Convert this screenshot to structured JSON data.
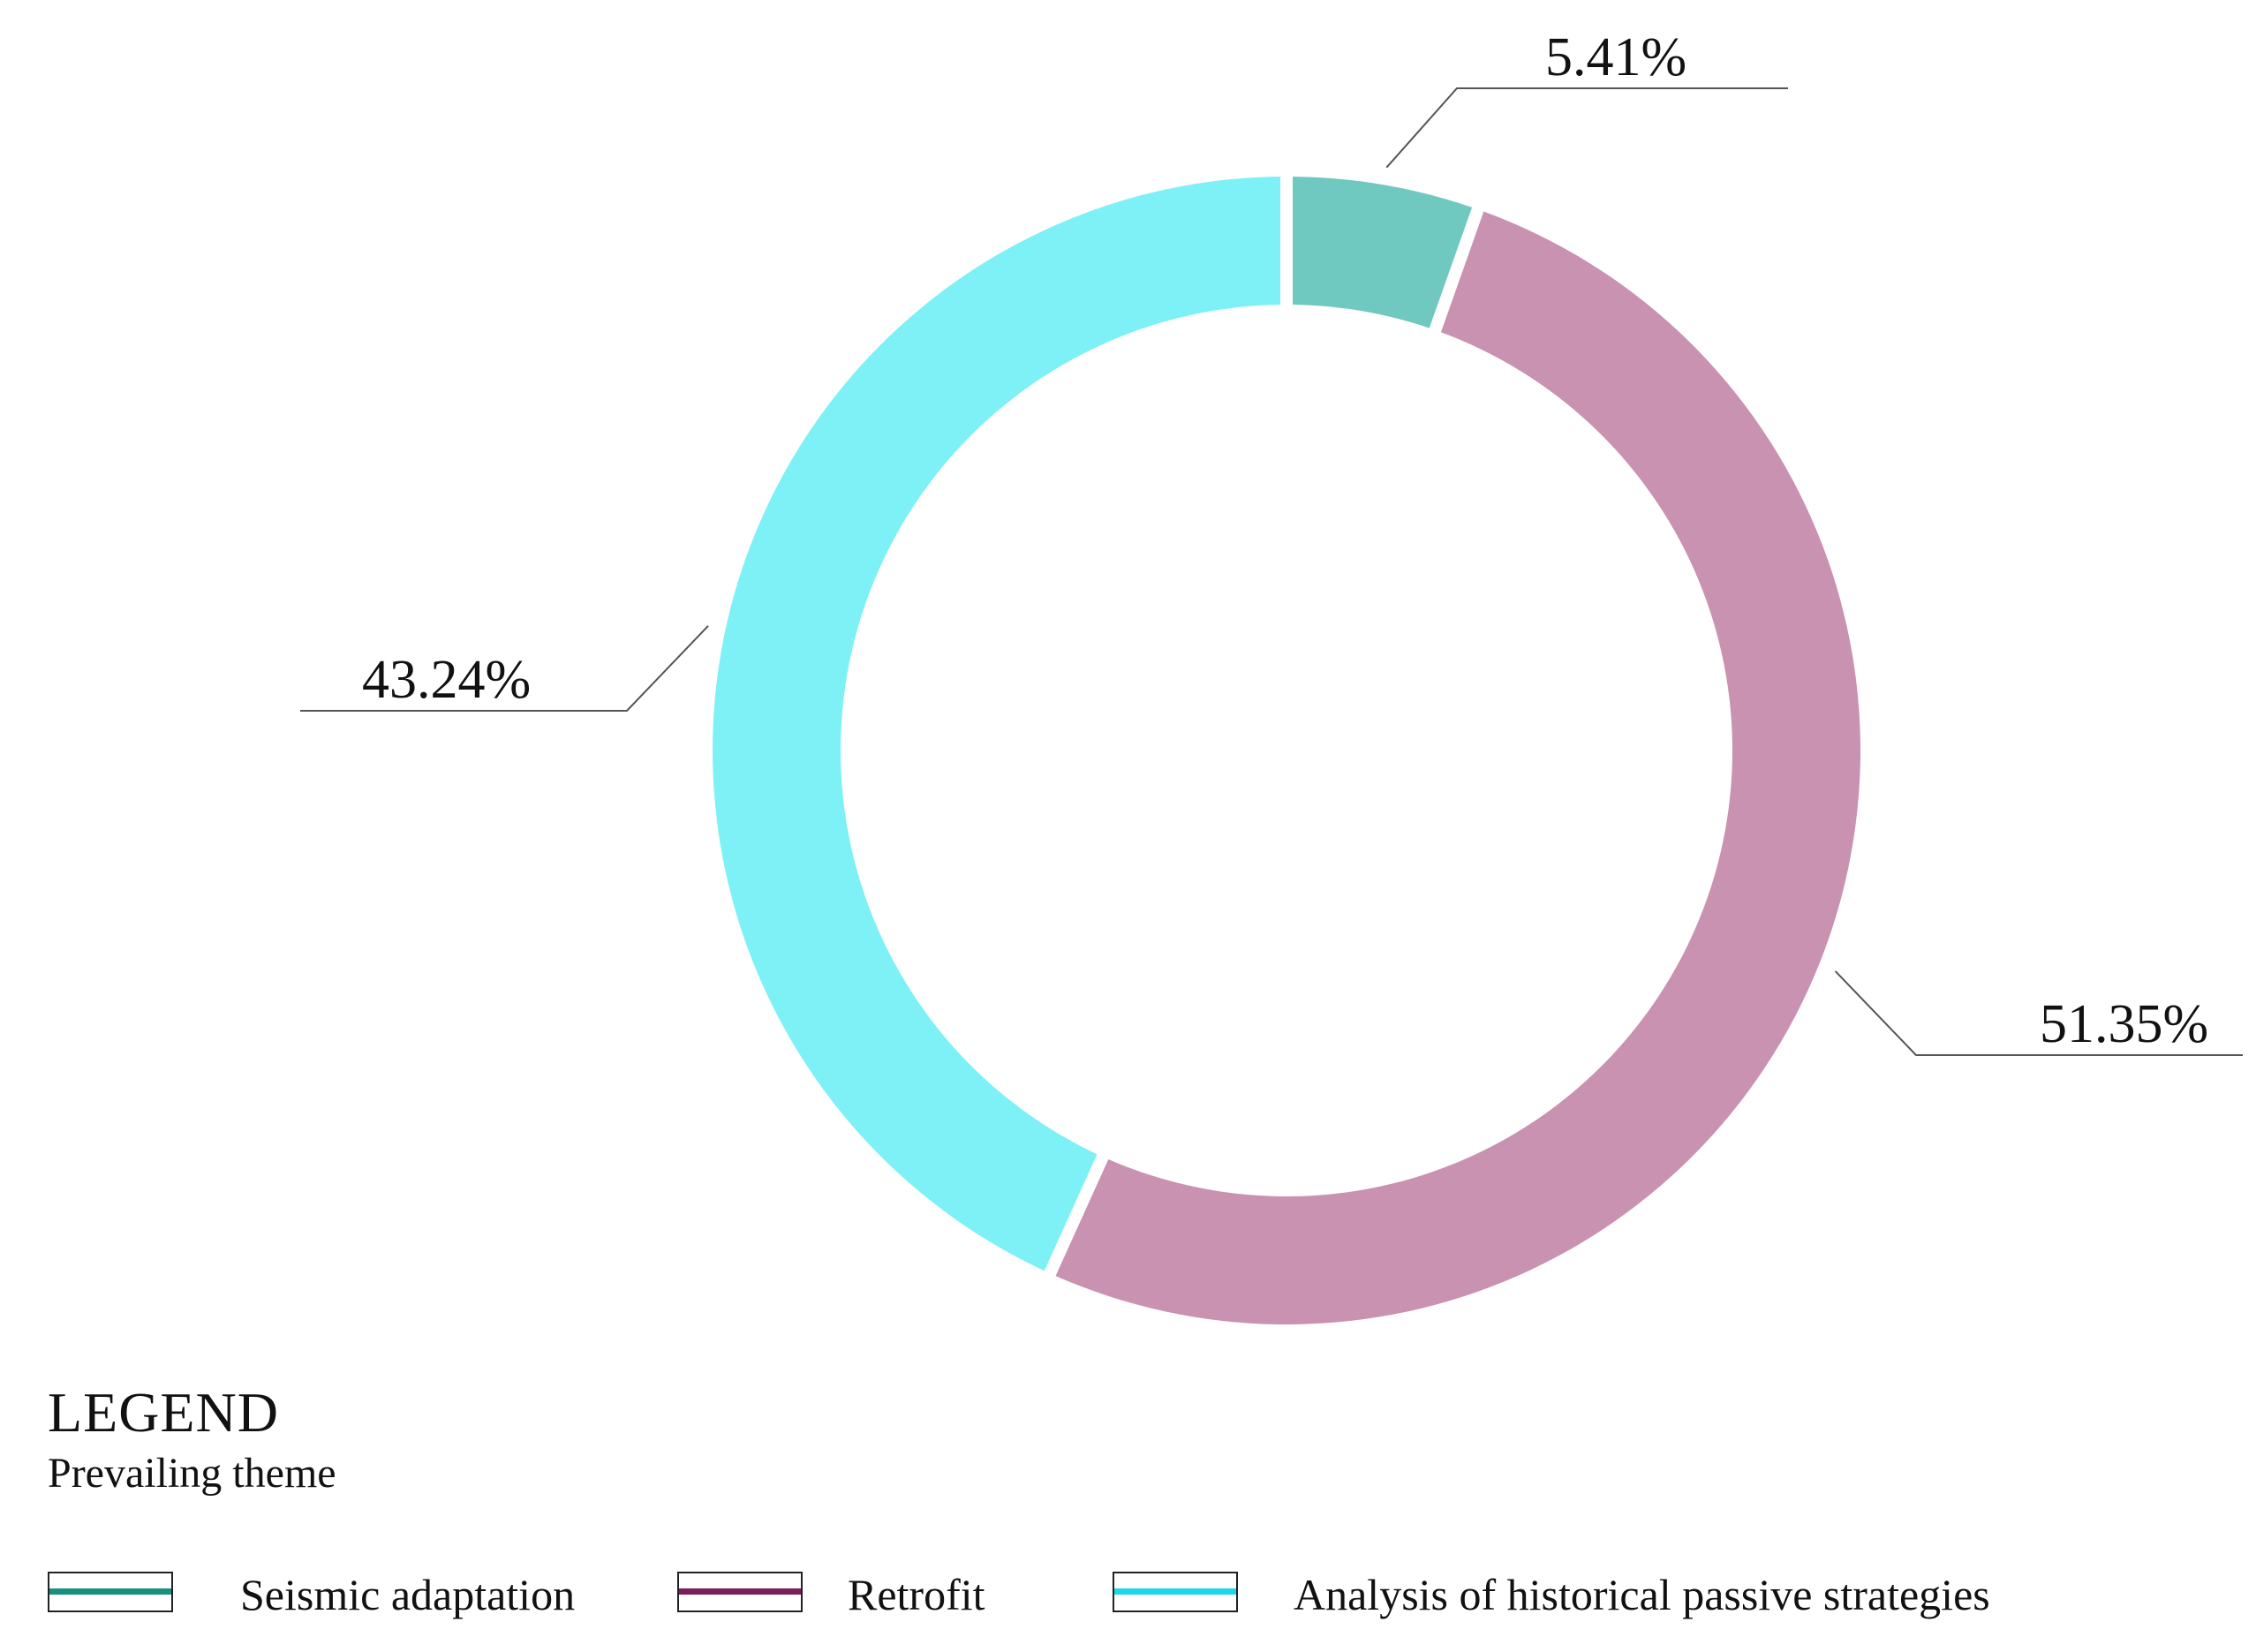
{
  "chart_data": {
    "type": "pie",
    "style": "donut",
    "slices": [
      {
        "name": "Seismic adaptation",
        "value": 5.41,
        "label": "5.41%",
        "fill": "#70c9c1",
        "legend_color": "#1a8f7e"
      },
      {
        "name": "Retrofit",
        "value": 51.35,
        "label": "51.35%",
        "fill": "#c992b0",
        "legend_color": "#7a1f5c"
      },
      {
        "name": "Analysis of historical passive strategies",
        "value": 43.24,
        "label": "43.24%",
        "fill": "#7ef1f6",
        "legend_color": "#1ed6e6"
      }
    ],
    "legend": {
      "title": "LEGEND",
      "subtitle": "Prevailing theme",
      "position": "bottom"
    }
  }
}
